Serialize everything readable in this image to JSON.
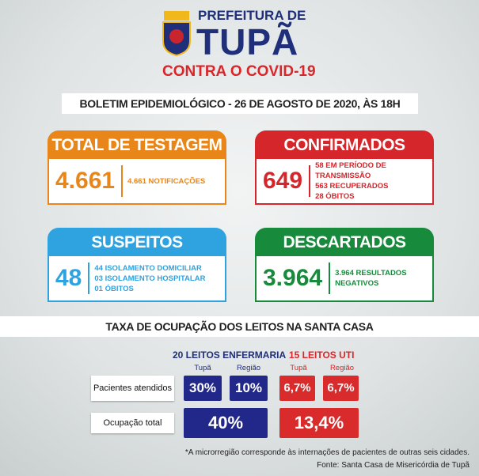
{
  "header": {
    "line1": "PREFEITURA DE",
    "line2": "TUPÃ",
    "line3": "CONTRA O COVID-19"
  },
  "bulletin": "BOLETIM EPIDEMIOLÓGICO - 26 DE AGOSTO DE 2020, ÀS 18H",
  "cards": [
    {
      "title": "TOTAL DE TESTAGEM",
      "number": "4.661",
      "details": [
        "4.661 NOTIFICAÇÕES"
      ]
    },
    {
      "title": "CONFIRMADOS",
      "number": "649",
      "details": [
        "58 EM PERÍODO DE TRANSMISSÃO",
        "563 RECUPERADOS",
        "28 ÓBITOS"
      ]
    },
    {
      "title": "SUSPEITOS",
      "number": "48",
      "details": [
        "44 ISOLAMENTO DOMICILIAR",
        "03 ISOLAMENTO HOSPITALAR",
        "01 ÓBITOS"
      ]
    },
    {
      "title": "DESCARTADOS",
      "number": "3.964",
      "details": [
        "3.964 RESULTADOS NEGATIVOS"
      ]
    }
  ],
  "occupancy": {
    "title": "TAXA DE OCUPAÇÃO DOS LEITOS NA SANTA CASA",
    "rows": [
      "Pacientes atendidos",
      "Ocupação total"
    ],
    "groups": [
      {
        "label": "20 LEITOS ENFERMARIA",
        "cols": [
          "Tupã",
          "Região"
        ],
        "patients": [
          "30%",
          "10%"
        ],
        "total": "40%"
      },
      {
        "label": "15 LEITOS UTI",
        "cols": [
          "Tupã",
          "Região"
        ],
        "patients": [
          "6,7%",
          "6,7%"
        ],
        "total": "13,4%"
      }
    ]
  },
  "footnote": "*A microrregião corresponde às internações de pacientes de outras seis cidades.",
  "source": "Fonte: Santa Casa de Misericórdia de Tupã"
}
